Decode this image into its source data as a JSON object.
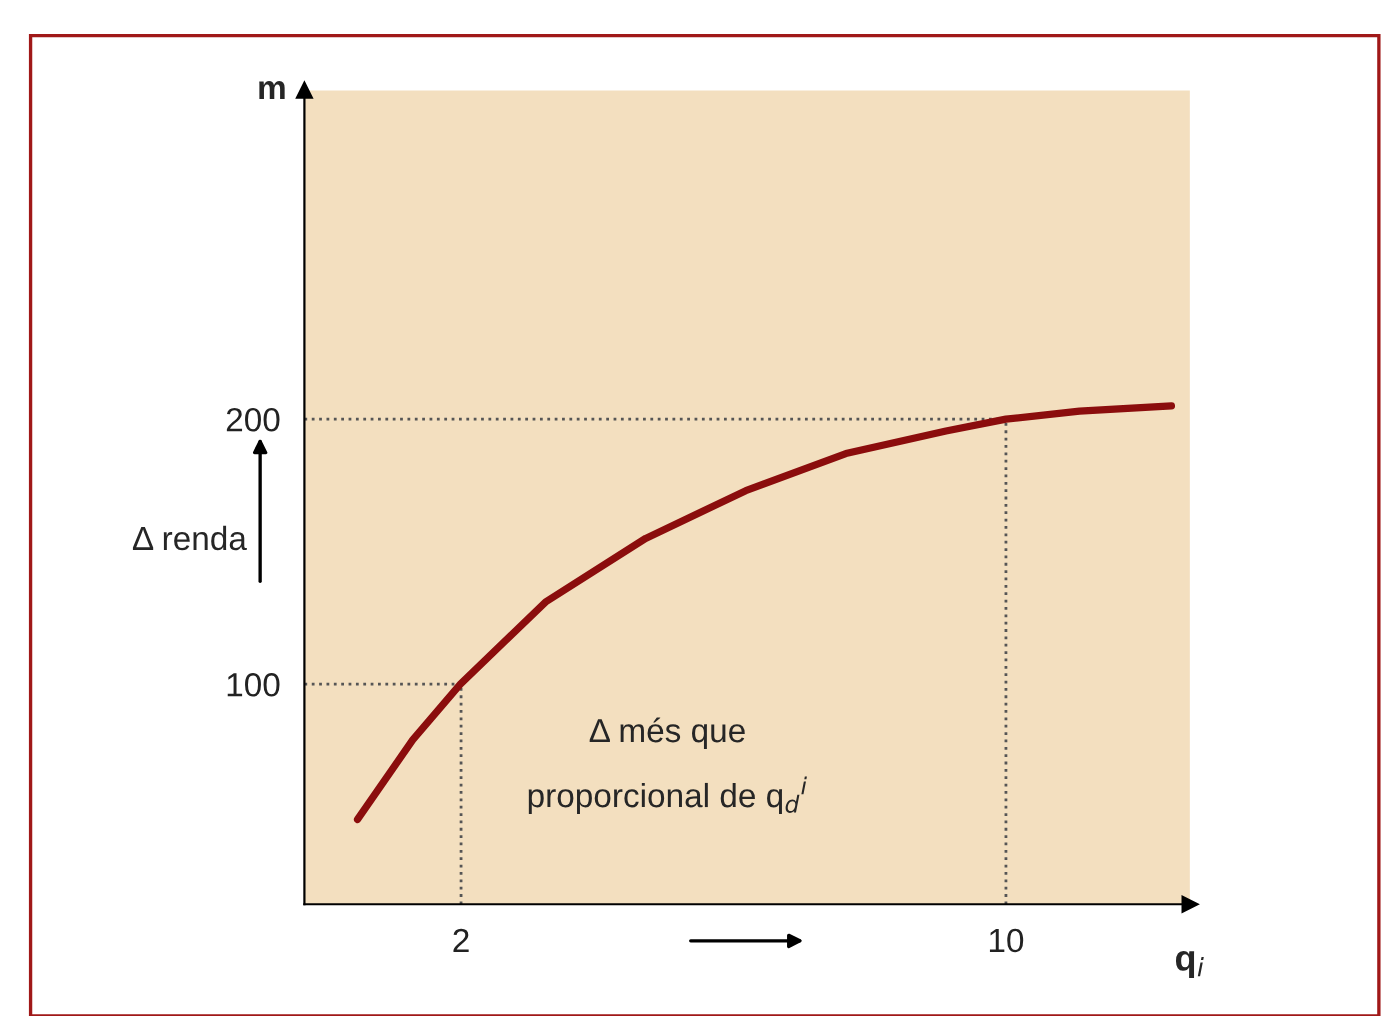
{
  "chart_data": {
    "type": "line",
    "xlabel": "q$_{i}$",
    "ylabel": "m",
    "x": [
      0.48,
      1.29,
      1.99,
      3.24,
      4.71,
      6.18,
      7.65,
      9.12,
      10.0,
      11.08,
      12.43
    ],
    "series": [
      {
        "color": "#8b0d0d",
        "values": [
          49,
          79,
          100,
          131,
          155,
          173,
          187,
          195.5,
          200,
          203,
          205
        ]
      }
    ],
    "xlim": [
      -0.3,
      12.7
    ],
    "ylim": [
      17,
      324
    ],
    "xticks": [
      2,
      10
    ],
    "yticks": [
      100,
      200
    ],
    "ref_lines": [
      {
        "axis": "y",
        "value": 100,
        "color": "#555555",
        "line_style": "dotted"
      },
      {
        "axis": "x",
        "value": 2,
        "color": "#555555",
        "line_style": "dotted"
      },
      {
        "axis": "y",
        "value": 200,
        "color": "#555555",
        "line_style": "dotted"
      },
      {
        "axis": "x",
        "value": 10,
        "color": "#555555",
        "line_style": "dotted"
      }
    ],
    "annotations": [
      "Δ renda",
      "Δ més que\nproporcional de q$_{d}$$^{i}$"
    ],
    "marker": "none",
    "line_style": "solid",
    "grid": false,
    "legend": false
  }
}
